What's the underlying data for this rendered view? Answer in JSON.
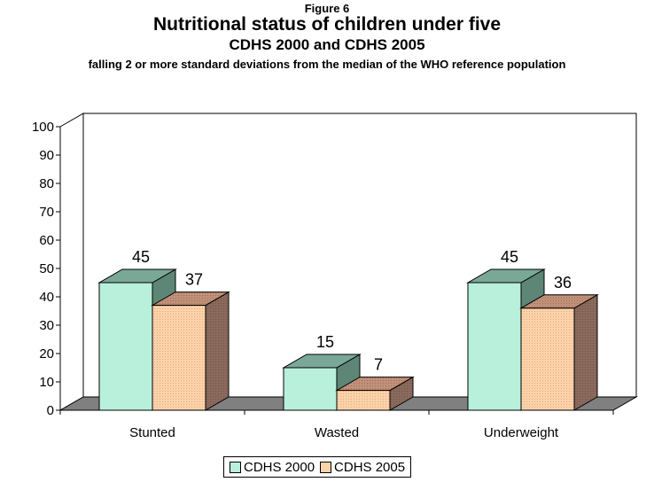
{
  "figure_label": "Figure 6",
  "title": "Nutritional status of children under five",
  "subtitle": "CDHS 2000 and CDHS 2005",
  "caption": "falling 2 or more standard deviations from the median of the WHO reference population",
  "colors": {
    "series_2000_front": "#b8f0dc",
    "series_2000_top": "#7aa898",
    "series_2000_side": "#5e8677",
    "series_2005_front": "#fbd2aa",
    "series_2005_top": "#c19078",
    "series_2005_side": "#8a6a5c",
    "floor": "#808080"
  },
  "chart_data": {
    "type": "bar",
    "categories": [
      "Stunted",
      "Wasted",
      "Underweight"
    ],
    "series": [
      {
        "name": "CDHS 2000",
        "values": [
          45,
          15,
          45
        ]
      },
      {
        "name": "CDHS 2005",
        "values": [
          37,
          7,
          36
        ]
      }
    ],
    "ylim": [
      0,
      100
    ],
    "yticks": [
      0,
      10,
      20,
      30,
      40,
      50,
      60,
      70,
      80,
      90,
      100
    ],
    "data_labels": true,
    "legend_position": "bottom",
    "grid": false
  },
  "legend": {
    "items": [
      {
        "label": "CDHS 2000"
      },
      {
        "label": "CDHS 2005"
      }
    ]
  }
}
